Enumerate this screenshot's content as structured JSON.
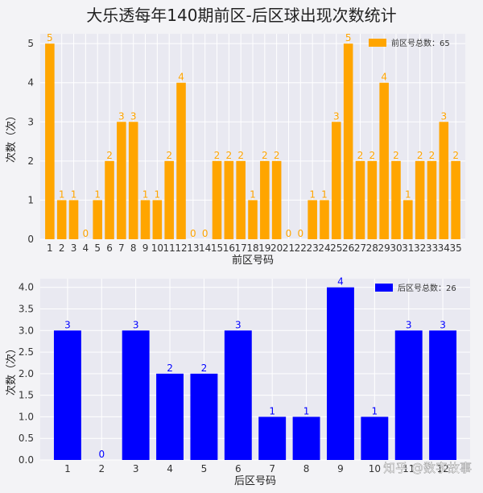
{
  "title": "大乐透每年140期前区-后区球出现次数统计",
  "watermark": "知乎 @数字故事",
  "chart_data": [
    {
      "type": "bar",
      "xlabel": "前区号码",
      "ylabel": "次数（次）",
      "legend": "前区号总数：65",
      "legend_position": "top-right",
      "color": "#ffa500",
      "ylim": [
        0,
        5.25
      ],
      "yticks": [
        "0",
        "1",
        "2",
        "3",
        "4",
        "5"
      ],
      "grid": true,
      "categories": [
        "1",
        "2",
        "3",
        "4",
        "5",
        "6",
        "7",
        "8",
        "9",
        "10",
        "11",
        "12",
        "13",
        "14",
        "15",
        "16",
        "17",
        "18",
        "19",
        "20",
        "21",
        "22",
        "23",
        "24",
        "25",
        "26",
        "27",
        "28",
        "29",
        "30",
        "31",
        "32",
        "33",
        "34",
        "35"
      ],
      "values": [
        5,
        1,
        1,
        0,
        1,
        2,
        3,
        3,
        1,
        1,
        2,
        4,
        0,
        0,
        2,
        2,
        2,
        1,
        2,
        2,
        0,
        0,
        1,
        1,
        3,
        5,
        2,
        2,
        4,
        2,
        1,
        2,
        2,
        3,
        2
      ]
    },
    {
      "type": "bar",
      "xlabel": "后区号码",
      "ylabel": "次数（次）",
      "legend": "后区号总数：26",
      "legend_position": "top-right",
      "color": "#0000ff",
      "ylim": [
        0,
        4.2
      ],
      "yticks": [
        "0.0",
        "0.5",
        "1.0",
        "1.5",
        "2.0",
        "2.5",
        "3.0",
        "3.5",
        "4.0"
      ],
      "grid": true,
      "categories": [
        "1",
        "2",
        "3",
        "4",
        "5",
        "6",
        "7",
        "8",
        "9",
        "10",
        "11",
        "12"
      ],
      "values": [
        3,
        0,
        3,
        2,
        2,
        3,
        1,
        1,
        4,
        1,
        3,
        3
      ]
    }
  ]
}
